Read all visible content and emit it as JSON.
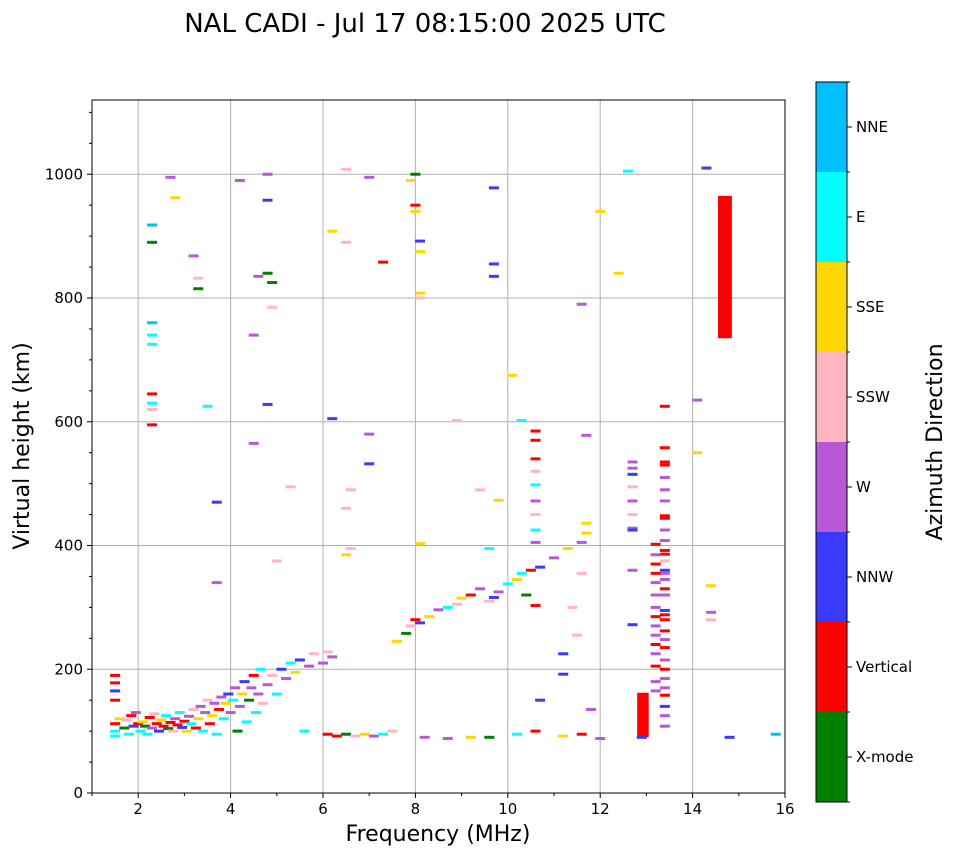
{
  "chart_data": {
    "type": "scatter",
    "title": "NAL CADI - Jul 17 08:15:00 2025 UTC",
    "xlabel": "Frequency (MHz)",
    "ylabel": "Virtual height (km)",
    "xlim": [
      1,
      16
    ],
    "ylim": [
      0,
      1120
    ],
    "xticks": [
      2,
      4,
      6,
      8,
      10,
      12,
      14,
      16
    ],
    "yticks": [
      0,
      200,
      400,
      600,
      800,
      1000
    ],
    "grid": true,
    "colorbar": {
      "label": "Azimuth Direction",
      "position": "right",
      "categories": [
        {
          "name": "X-mode",
          "color": "#008000"
        },
        {
          "name": "Vertical",
          "color": "#ff0000"
        },
        {
          "name": "NNW",
          "color": "#3a3aff"
        },
        {
          "name": "W",
          "color": "#b857d8"
        },
        {
          "name": "SSW",
          "color": "#ffb6c1"
        },
        {
          "name": "SSE",
          "color": "#ffd700"
        },
        {
          "name": "E",
          "color": "#00ffff"
        },
        {
          "name": "NNE",
          "color": "#00bfff"
        }
      ]
    },
    "echoes": [
      [
        1.5,
        190,
        1
      ],
      [
        1.5,
        178,
        1
      ],
      [
        1.5,
        165,
        2
      ],
      [
        1.5,
        150,
        1
      ],
      [
        1.5,
        112,
        1
      ],
      [
        1.5,
        100,
        6
      ],
      [
        1.5,
        92,
        6
      ],
      [
        1.6,
        120,
        5
      ],
      [
        1.7,
        105,
        0
      ],
      [
        1.75,
        118,
        4
      ],
      [
        1.8,
        95,
        6
      ],
      [
        1.85,
        125,
        1
      ],
      [
        1.9,
        108,
        2
      ],
      [
        1.95,
        130,
        3
      ],
      [
        2.0,
        112,
        1
      ],
      [
        2.05,
        100,
        6
      ],
      [
        2.1,
        115,
        5
      ],
      [
        2.15,
        108,
        0
      ],
      [
        2.2,
        95,
        6
      ],
      [
        2.25,
        122,
        1
      ],
      [
        2.3,
        105,
        3
      ],
      [
        2.35,
        128,
        4
      ],
      [
        2.4,
        112,
        1
      ],
      [
        2.45,
        100,
        2
      ],
      [
        2.5,
        118,
        5
      ],
      [
        2.55,
        108,
        1
      ],
      [
        2.6,
        125,
        6
      ],
      [
        2.65,
        104,
        0
      ],
      [
        2.7,
        114,
        1
      ],
      [
        2.75,
        100,
        4
      ],
      [
        2.8,
        120,
        3
      ],
      [
        2.85,
        110,
        1
      ],
      [
        2.9,
        130,
        6
      ],
      [
        2.95,
        106,
        2
      ],
      [
        3.0,
        116,
        1
      ],
      [
        3.05,
        100,
        5
      ],
      [
        3.1,
        124,
        3
      ],
      [
        3.15,
        112,
        6
      ],
      [
        3.2,
        135,
        4
      ],
      [
        3.25,
        105,
        1
      ],
      [
        3.3,
        120,
        5
      ],
      [
        3.35,
        140,
        3
      ],
      [
        3.4,
        100,
        6
      ],
      [
        3.45,
        130,
        3
      ],
      [
        3.5,
        150,
        4
      ],
      [
        3.55,
        112,
        1
      ],
      [
        3.6,
        125,
        5
      ],
      [
        3.65,
        145,
        3
      ],
      [
        3.7,
        95,
        6
      ],
      [
        3.75,
        135,
        1
      ],
      [
        3.8,
        155,
        3
      ],
      [
        3.85,
        120,
        6
      ],
      [
        3.9,
        145,
        5
      ],
      [
        3.95,
        160,
        2
      ],
      [
        4.0,
        130,
        3
      ],
      [
        4.05,
        150,
        6
      ],
      [
        4.1,
        170,
        3
      ],
      [
        4.15,
        100,
        0
      ],
      [
        4.2,
        140,
        3
      ],
      [
        4.25,
        160,
        5
      ],
      [
        4.3,
        180,
        2
      ],
      [
        4.35,
        115,
        6
      ],
      [
        4.4,
        150,
        0
      ],
      [
        4.45,
        170,
        3
      ],
      [
        4.5,
        190,
        1
      ],
      [
        4.55,
        130,
        6
      ],
      [
        4.6,
        160,
        3
      ],
      [
        4.65,
        200,
        6
      ],
      [
        4.7,
        145,
        4
      ],
      [
        4.8,
        175,
        3
      ],
      [
        4.9,
        190,
        4
      ],
      [
        5.0,
        160,
        6
      ],
      [
        5.1,
        200,
        2
      ],
      [
        5.2,
        185,
        3
      ],
      [
        5.3,
        210,
        6
      ],
      [
        5.4,
        195,
        5
      ],
      [
        5.5,
        215,
        2
      ],
      [
        5.6,
        100,
        6
      ],
      [
        5.7,
        205,
        3
      ],
      [
        5.8,
        225,
        4
      ],
      [
        6.0,
        210,
        3
      ],
      [
        6.1,
        228,
        4
      ],
      [
        6.2,
        220,
        3
      ],
      [
        6.1,
        95,
        1
      ],
      [
        6.3,
        92,
        1
      ],
      [
        6.5,
        95,
        0
      ],
      [
        6.7,
        92,
        4
      ],
      [
        6.9,
        95,
        5
      ],
      [
        7.1,
        92,
        3
      ],
      [
        7.3,
        95,
        6
      ],
      [
        7.5,
        100,
        4
      ],
      [
        7.6,
        245,
        5
      ],
      [
        7.8,
        258,
        0
      ],
      [
        7.9,
        270,
        4
      ],
      [
        8.0,
        280,
        1
      ],
      [
        8.1,
        275,
        2
      ],
      [
        8.3,
        285,
        5
      ],
      [
        8.5,
        296,
        3
      ],
      [
        8.7,
        300,
        6
      ],
      [
        8.9,
        305,
        4
      ],
      [
        9.0,
        315,
        5
      ],
      [
        9.2,
        320,
        1
      ],
      [
        9.4,
        330,
        3
      ],
      [
        9.6,
        310,
        4
      ],
      [
        9.7,
        316,
        2
      ],
      [
        9.8,
        325,
        3
      ],
      [
        10.0,
        338,
        6
      ],
      [
        10.2,
        345,
        5
      ],
      [
        10.3,
        355,
        6
      ],
      [
        10.5,
        360,
        1
      ],
      [
        10.7,
        365,
        2
      ],
      [
        11.0,
        380,
        3
      ],
      [
        11.3,
        395,
        5
      ],
      [
        11.6,
        405,
        3
      ],
      [
        11.7,
        420,
        5
      ],
      [
        11.7,
        436,
        5
      ],
      [
        11.6,
        355,
        4
      ],
      [
        11.4,
        300,
        4
      ],
      [
        11.5,
        255,
        4
      ],
      [
        11.8,
        135,
        3
      ],
      [
        8.2,
        90,
        3
      ],
      [
        8.7,
        88,
        3
      ],
      [
        9.2,
        90,
        5
      ],
      [
        9.6,
        90,
        0
      ],
      [
        10.2,
        95,
        6
      ],
      [
        10.6,
        100,
        1
      ],
      [
        11.2,
        92,
        5
      ],
      [
        11.6,
        95,
        1
      ],
      [
        12.0,
        88,
        3
      ],
      [
        12.9,
        90,
        2
      ],
      [
        14.8,
        90,
        2
      ],
      [
        15.8,
        95,
        7
      ],
      [
        2.3,
        760,
        7
      ],
      [
        2.3,
        740,
        6
      ],
      [
        2.3,
        725,
        6
      ],
      [
        2.3,
        645,
        1
      ],
      [
        2.3,
        630,
        6
      ],
      [
        2.3,
        620,
        4
      ],
      [
        2.3,
        595,
        1
      ],
      [
        2.3,
        890,
        0
      ],
      [
        2.3,
        918,
        7
      ],
      [
        2.7,
        995,
        3
      ],
      [
        2.8,
        962,
        5
      ],
      [
        3.2,
        868,
        3
      ],
      [
        3.3,
        832,
        4
      ],
      [
        3.3,
        815,
        0
      ],
      [
        3.5,
        625,
        6
      ],
      [
        3.7,
        470,
        2
      ],
      [
        3.7,
        340,
        3
      ],
      [
        4.2,
        990,
        3
      ],
      [
        4.5,
        740,
        3
      ],
      [
        4.6,
        835,
        3
      ],
      [
        4.8,
        1000,
        3
      ],
      [
        4.8,
        958,
        2
      ],
      [
        4.8,
        840,
        0
      ],
      [
        4.9,
        825,
        0
      ],
      [
        4.9,
        785,
        4
      ],
      [
        4.8,
        628,
        2
      ],
      [
        4.5,
        565,
        3
      ],
      [
        5.0,
        375,
        4
      ],
      [
        5.3,
        495,
        4
      ],
      [
        6.2,
        605,
        2
      ],
      [
        6.2,
        908,
        5
      ],
      [
        6.5,
        890,
        4
      ],
      [
        6.5,
        1008,
        4
      ],
      [
        6.6,
        490,
        4
      ],
      [
        6.5,
        460,
        4
      ],
      [
        6.6,
        395,
        4
      ],
      [
        6.5,
        385,
        5
      ],
      [
        7.0,
        995,
        3
      ],
      [
        7.0,
        580,
        3
      ],
      [
        7.0,
        532,
        2
      ],
      [
        7.3,
        858,
        1
      ],
      [
        7.9,
        990,
        5
      ],
      [
        8.0,
        1000,
        0
      ],
      [
        8.0,
        950,
        1
      ],
      [
        8.0,
        940,
        5
      ],
      [
        8.1,
        892,
        2
      ],
      [
        8.1,
        875,
        5
      ],
      [
        8.1,
        808,
        5
      ],
      [
        8.1,
        800,
        4
      ],
      [
        8.1,
        403,
        5
      ],
      [
        8.9,
        602,
        4
      ],
      [
        9.4,
        490,
        4
      ],
      [
        9.7,
        978,
        2
      ],
      [
        9.7,
        855,
        2
      ],
      [
        9.7,
        835,
        2
      ],
      [
        9.8,
        473,
        5
      ],
      [
        9.6,
        395,
        6
      ],
      [
        10.1,
        675,
        5
      ],
      [
        10.3,
        602,
        6
      ],
      [
        10.6,
        585,
        1
      ],
      [
        10.6,
        570,
        1
      ],
      [
        10.6,
        540,
        1
      ],
      [
        10.6,
        520,
        4
      ],
      [
        10.6,
        498,
        6
      ],
      [
        10.6,
        472,
        3
      ],
      [
        10.6,
        450,
        4
      ],
      [
        10.6,
        425,
        6
      ],
      [
        10.6,
        405,
        3
      ],
      [
        10.4,
        320,
        0
      ],
      [
        10.6,
        303,
        1
      ],
      [
        10.7,
        150,
        2
      ],
      [
        11.2,
        225,
        2
      ],
      [
        11.2,
        192,
        2
      ],
      [
        11.6,
        790,
        3
      ],
      [
        11.7,
        578,
        3
      ],
      [
        12.0,
        940,
        5
      ],
      [
        12.4,
        840,
        5
      ],
      [
        12.6,
        1005,
        6
      ],
      [
        14.3,
        1010,
        2
      ],
      [
        14.1,
        635,
        3
      ],
      [
        14.1,
        550,
        5
      ],
      [
        14.4,
        335,
        5
      ],
      [
        14.4,
        292,
        3
      ],
      [
        14.4,
        280,
        4
      ],
      [
        13.4,
        625,
        1
      ],
      [
        13.4,
        558,
        1
      ],
      [
        13.4,
        535,
        1
      ],
      [
        13.4,
        530,
        1
      ],
      [
        13.4,
        510,
        3
      ],
      [
        13.4,
        490,
        3
      ],
      [
        13.4,
        472,
        3
      ],
      [
        13.4,
        448,
        1
      ],
      [
        13.4,
        444,
        1
      ],
      [
        13.4,
        425,
        3
      ],
      [
        13.4,
        408,
        3
      ],
      [
        13.4,
        392,
        1
      ],
      [
        13.4,
        386,
        1
      ],
      [
        13.4,
        375,
        4
      ],
      [
        13.4,
        360,
        2
      ],
      [
        13.4,
        355,
        3
      ],
      [
        13.4,
        345,
        3
      ],
      [
        13.4,
        330,
        1
      ],
      [
        13.4,
        320,
        3
      ],
      [
        13.4,
        295,
        2
      ],
      [
        13.4,
        288,
        1
      ],
      [
        13.4,
        280,
        1
      ],
      [
        13.4,
        262,
        1
      ],
      [
        13.4,
        248,
        3
      ],
      [
        13.4,
        235,
        1
      ],
      [
        13.4,
        215,
        3
      ],
      [
        13.4,
        200,
        1
      ],
      [
        13.4,
        185,
        3
      ],
      [
        13.4,
        170,
        3
      ],
      [
        13.4,
        158,
        1
      ],
      [
        13.4,
        140,
        2
      ],
      [
        13.4,
        125,
        3
      ],
      [
        13.4,
        108,
        3
      ],
      [
        13.2,
        402,
        1
      ],
      [
        13.2,
        385,
        3
      ],
      [
        13.2,
        370,
        1
      ],
      [
        13.2,
        355,
        1
      ],
      [
        13.2,
        340,
        3
      ],
      [
        13.2,
        320,
        3
      ],
      [
        13.2,
        300,
        3
      ],
      [
        13.2,
        285,
        1
      ],
      [
        13.2,
        270,
        3
      ],
      [
        13.2,
        255,
        3
      ],
      [
        13.2,
        240,
        1
      ],
      [
        13.2,
        225,
        3
      ],
      [
        13.2,
        205,
        1
      ],
      [
        13.2,
        180,
        3
      ],
      [
        13.2,
        165,
        3
      ],
      [
        12.7,
        535,
        3
      ],
      [
        12.7,
        525,
        3
      ],
      [
        12.7,
        515,
        2
      ],
      [
        12.7,
        495,
        4
      ],
      [
        12.7,
        472,
        3
      ],
      [
        12.7,
        450,
        4
      ],
      [
        12.7,
        428,
        3
      ],
      [
        12.7,
        425,
        2
      ],
      [
        12.7,
        360,
        3
      ],
      [
        12.7,
        272,
        2
      ]
    ],
    "rects": [
      {
        "x0": 12.8,
        "x1": 13.05,
        "y0": 90,
        "y1": 162,
        "cat": 1
      },
      {
        "x0": 14.55,
        "x1": 14.85,
        "y0": 735,
        "y1": 965,
        "cat": 1
      }
    ]
  }
}
